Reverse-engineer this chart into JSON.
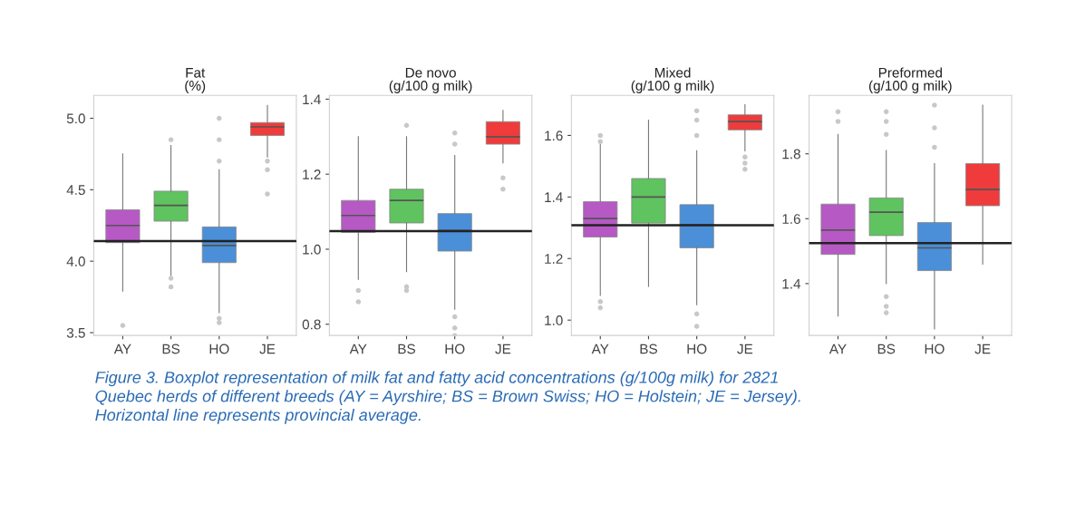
{
  "chart_data": [
    {
      "type": "box",
      "title": "Fat\n(%)",
      "categories": [
        "AY",
        "BS",
        "HO",
        "JE"
      ],
      "colors": [
        "#b659c4",
        "#5fc35f",
        "#4a8fd8",
        "#ef3b3b"
      ],
      "boxes": [
        {
          "low": 3.79,
          "q1": 4.13,
          "median": 4.25,
          "q3": 4.36,
          "high": 4.75,
          "outliers": [
            3.55
          ]
        },
        {
          "low": 3.9,
          "q1": 4.28,
          "median": 4.39,
          "q3": 4.49,
          "high": 4.81,
          "outliers": [
            3.88,
            3.82,
            4.85
          ]
        },
        {
          "low": 3.64,
          "q1": 3.99,
          "median": 4.11,
          "q3": 4.24,
          "high": 4.64,
          "outliers": [
            3.6,
            3.57,
            4.7,
            4.85,
            5.0
          ]
        },
        {
          "low": 4.73,
          "q1": 4.88,
          "median": 4.94,
          "q3": 4.97,
          "high": 5.09,
          "outliers": [
            4.7,
            4.64,
            4.47
          ]
        }
      ],
      "ylim": [
        3.48,
        5.16
      ],
      "yticks": [
        3.5,
        {
          "value": 4,
          "label": "4.0"
        },
        4.5,
        {
          "value": 5,
          "label": "5.0"
        }
      ],
      "ref_lines": [
        {
          "axis": "y",
          "value": 4.14,
          "color": "#222222"
        }
      ],
      "grid": false,
      "annotations": [
        "Figure 3. Boxplot representation of milk fat and fatty acid concentrations (g/100g milk) for 2821\nQuebec herds of different breeds (AY = Ayrshire; BS = Brown Swiss; HO = Holstein; JE = Jersey).\nHorizontal line represents provincial average."
      ]
    },
    {
      "type": "box",
      "title": "De novo\n(g/100 g milk)",
      "categories": [
        "AY",
        "BS",
        "HO",
        "JE"
      ],
      "colors": [
        "#b659c4",
        "#5fc35f",
        "#4a8fd8",
        "#ef3b3b"
      ],
      "boxes": [
        {
          "low": 0.92,
          "q1": 1.045,
          "median": 1.09,
          "q3": 1.13,
          "high": 1.3,
          "outliers": [
            0.89,
            0.86
          ]
        },
        {
          "low": 0.94,
          "q1": 1.07,
          "median": 1.13,
          "q3": 1.16,
          "high": 1.3,
          "outliers": [
            0.9,
            0.89,
            1.33
          ]
        },
        {
          "low": 0.84,
          "q1": 0.995,
          "median": 1.05,
          "q3": 1.095,
          "high": 1.25,
          "outliers": [
            0.82,
            0.79,
            0.77,
            1.28,
            1.31
          ]
        },
        {
          "low": 1.23,
          "q1": 1.28,
          "median": 1.3,
          "q3": 1.34,
          "high": 1.37,
          "outliers": [
            1.19,
            1.16
          ]
        }
      ],
      "ylim": [
        0.77,
        1.41
      ],
      "yticks": [
        0.8,
        {
          "value": 1,
          "label": "1.0"
        },
        1.2,
        1.4
      ],
      "ref_lines": [
        {
          "axis": "y",
          "value": 1.048,
          "color": "#222222"
        }
      ],
      "grid": false
    },
    {
      "type": "box",
      "title": "Mixed\n(g/100 g milk)",
      "categories": [
        "AY",
        "BS",
        "HO",
        "JE"
      ],
      "colors": [
        "#b659c4",
        "#5fc35f",
        "#4a8fd8",
        "#ef3b3b"
      ],
      "boxes": [
        {
          "low": 1.08,
          "q1": 1.27,
          "median": 1.33,
          "q3": 1.385,
          "high": 1.57,
          "outliers": [
            1.06,
            1.04,
            1.58,
            1.6
          ]
        },
        {
          "low": 1.11,
          "q1": 1.315,
          "median": 1.4,
          "q3": 1.46,
          "high": 1.65
        },
        {
          "low": 1.05,
          "q1": 1.235,
          "median": 1.31,
          "q3": 1.375,
          "high": 1.55,
          "outliers": [
            1.02,
            0.98,
            1.6,
            1.65,
            1.68
          ]
        },
        {
          "low": 1.55,
          "q1": 1.618,
          "median": 1.645,
          "q3": 1.667,
          "high": 1.7,
          "outliers": [
            1.53,
            1.51,
            1.49
          ]
        }
      ],
      "ylim": [
        0.95,
        1.73
      ],
      "yticks": [
        {
          "value": 1,
          "label": "1.0"
        },
        1.2,
        1.4,
        1.6
      ],
      "ref_lines": [
        {
          "axis": "y",
          "value": 1.308,
          "color": "#222222"
        }
      ],
      "grid": false
    },
    {
      "type": "box",
      "title": "Preformed\n(g/100 g milk)",
      "categories": [
        "AY",
        "BS",
        "HO",
        "JE"
      ],
      "colors": [
        "#b659c4",
        "#5fc35f",
        "#4a8fd8",
        "#ef3b3b"
      ],
      "boxes": [
        {
          "low": 1.3,
          "q1": 1.49,
          "median": 1.565,
          "q3": 1.645,
          "high": 1.86,
          "outliers": [
            1.9,
            1.93
          ]
        },
        {
          "low": 1.4,
          "q1": 1.548,
          "median": 1.62,
          "q3": 1.664,
          "high": 1.81,
          "outliers": [
            1.86,
            1.9,
            1.93,
            1.36,
            1.33,
            1.31
          ]
        },
        {
          "low": 1.26,
          "q1": 1.44,
          "median": 1.51,
          "q3": 1.588,
          "high": 1.77,
          "outliers": [
            1.82,
            1.88,
            1.95
          ]
        },
        {
          "low": 1.46,
          "q1": 1.64,
          "median": 1.69,
          "q3": 1.77,
          "high": 1.95
        }
      ],
      "ylim": [
        1.24,
        1.98
      ],
      "yticks": [
        1.4,
        1.6,
        1.8
      ],
      "ref_lines": [
        {
          "axis": "y",
          "value": 1.525,
          "color": "#222222"
        }
      ],
      "grid": false
    }
  ]
}
